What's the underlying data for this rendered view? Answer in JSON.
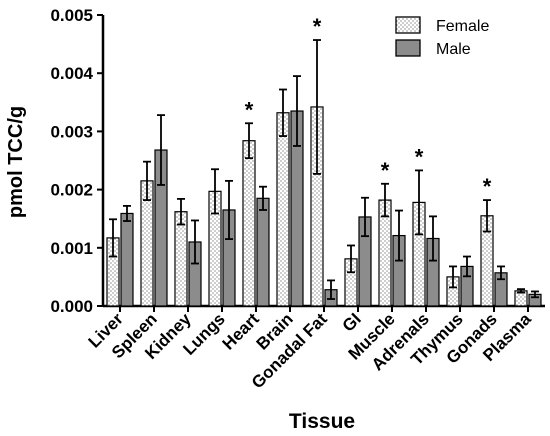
{
  "chart_data": {
    "type": "bar",
    "title": "",
    "xlabel": "Tissue",
    "ylabel": "pmol TCC/g",
    "ylim": [
      0,
      0.005
    ],
    "yticks": [
      "0.000",
      "0.001",
      "0.002",
      "0.003",
      "0.004",
      "0.005"
    ],
    "grid": false,
    "legend_position": "top-right",
    "categories": [
      "Liver",
      "Spleen",
      "Kidney",
      "Lungs",
      "Heart",
      "Brain",
      "Gonadal Fat",
      "GI",
      "Muscle",
      "Adrenals",
      "Thymus",
      "Gonads",
      "Plasma"
    ],
    "series": [
      {
        "name": "Female",
        "pattern": "dotted",
        "fill": "#ffffff",
        "values": [
          0.00117,
          0.00215,
          0.00162,
          0.00197,
          0.00284,
          0.00332,
          0.00342,
          0.00081,
          0.00182,
          0.00178,
          0.0005,
          0.00155,
          0.00026
        ],
        "errors": [
          0.00032,
          0.00033,
          0.00022,
          0.00038,
          0.0003,
          0.0004,
          0.00115,
          0.00023,
          0.00028,
          0.00055,
          0.00018,
          0.00027,
          3e-05
        ]
      },
      {
        "name": "Male",
        "pattern": "solid",
        "fill": "#8c8c8c",
        "values": [
          0.00159,
          0.00268,
          0.0011,
          0.00165,
          0.00185,
          0.00335,
          0.00028,
          0.00153,
          0.00121,
          0.00116,
          0.00068,
          0.00057,
          0.0002
        ],
        "errors": [
          0.00013,
          0.0006,
          0.00037,
          0.0005,
          0.0002,
          0.0006,
          0.00016,
          0.00033,
          0.00043,
          0.00038,
          0.00017,
          0.00011,
          5e-05
        ]
      }
    ],
    "significance": [
      {
        "category": "Heart",
        "series": "Female",
        "label": "*"
      },
      {
        "category": "Gonadal Fat",
        "series": "Female",
        "label": "*"
      },
      {
        "category": "Muscle",
        "series": "Female",
        "label": "*"
      },
      {
        "category": "Adrenals",
        "series": "Female",
        "label": "*"
      },
      {
        "category": "Gonads",
        "series": "Female",
        "label": "*"
      }
    ]
  }
}
